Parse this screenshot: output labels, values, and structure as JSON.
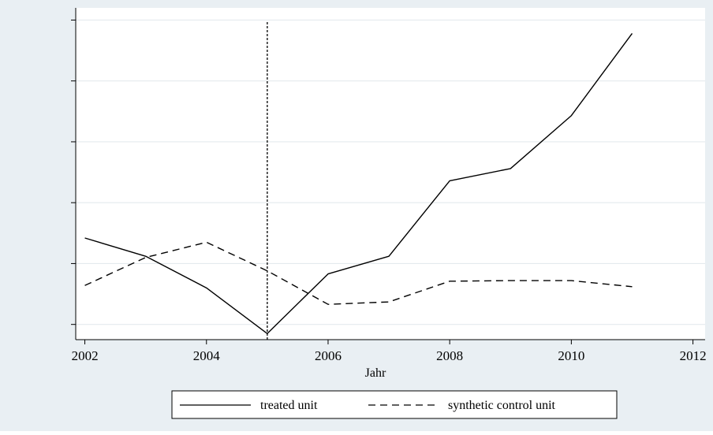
{
  "chart_data": {
    "type": "line",
    "x": [
      2002,
      2003,
      2004,
      2005,
      2006,
      2007,
      2008,
      2009,
      2010,
      2011
    ],
    "series": [
      {
        "name": "treated unit",
        "style": "solid",
        "values": [
          1.42,
          1.12,
          0.6,
          -0.15,
          0.83,
          1.12,
          2.36,
          2.56,
          3.43,
          4.78
        ]
      },
      {
        "name": "synthetic control unit",
        "style": "dashed",
        "values": [
          0.64,
          1.1,
          1.35,
          0.88,
          0.33,
          0.37,
          0.71,
          0.72,
          0.72,
          0.62
        ]
      }
    ],
    "xlabel": "Jahr",
    "ylabel": "",
    "xticks": [
      2002,
      2004,
      2006,
      2008,
      2010,
      2012
    ],
    "xlim": [
      2001.85,
      2012.2
    ],
    "ylim": [
      -0.25,
      5.2
    ],
    "y_ticks_unlabeled": [
      0,
      1,
      2,
      3,
      4,
      5
    ],
    "grid": true,
    "vertical_reference_line": {
      "x": 2005,
      "style": "dotted"
    },
    "legend_position": "bottom-center",
    "colors": {
      "outer_background": "#e9eff3",
      "plot_background": "#ffffff",
      "gridline": "#e4eaee",
      "line": "#000000"
    }
  }
}
